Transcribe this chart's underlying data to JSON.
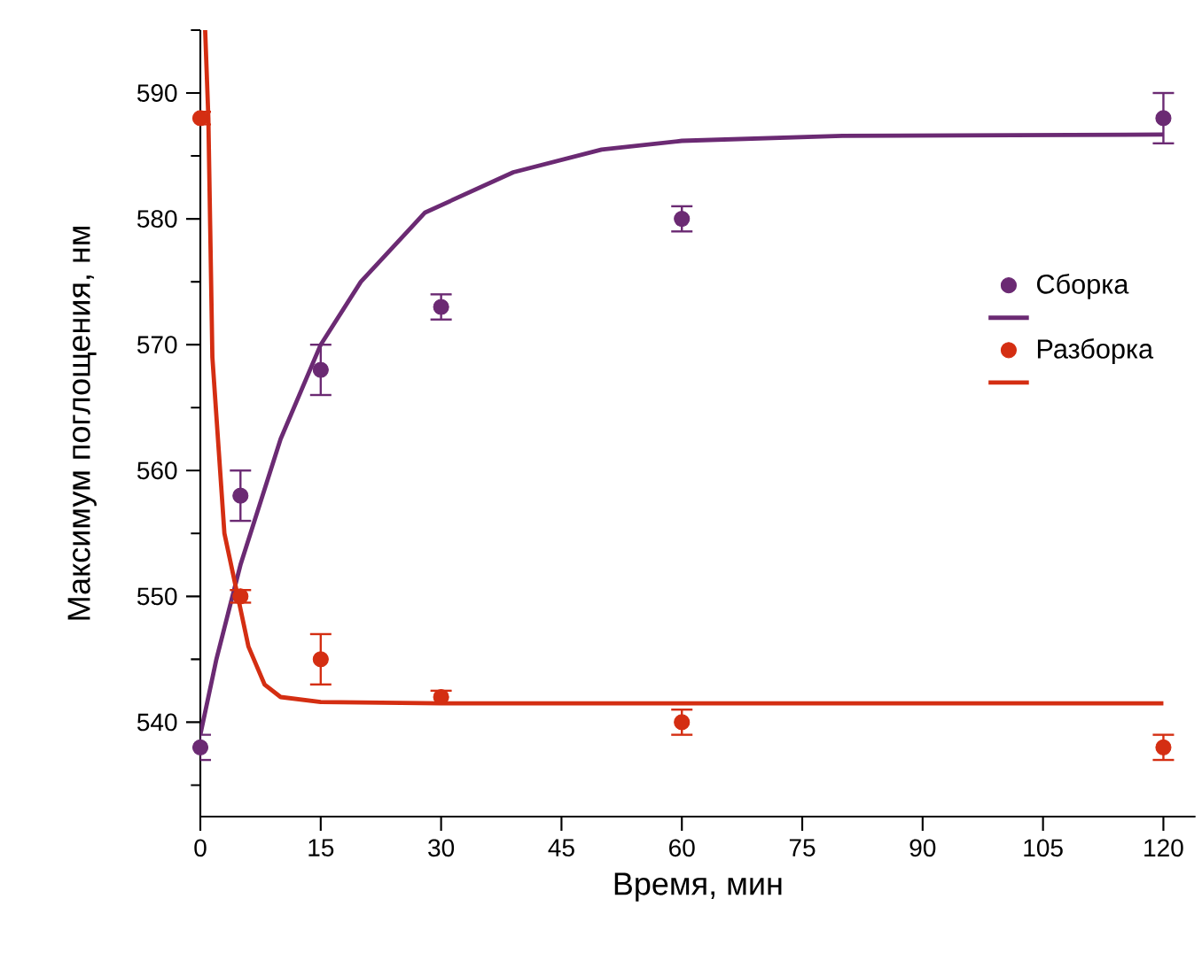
{
  "chart_data": {
    "type": "scatter",
    "xlabel": "Время, мин",
    "ylabel": "Максимум поглощения, нм",
    "xlim": [
      0,
      124
    ],
    "ylim": [
      532.5,
      595
    ],
    "xticks": [
      0,
      15,
      30,
      45,
      60,
      75,
      90,
      105,
      120
    ],
    "yticks": [
      {
        "value": 535,
        "label": null
      },
      540,
      {
        "value": 545,
        "label": null
      },
      550,
      {
        "value": 555,
        "label": null
      },
      560,
      {
        "value": 565,
        "label": null
      },
      570,
      {
        "value": 575,
        "label": null
      },
      580,
      {
        "value": 585,
        "label": null
      },
      590,
      {
        "value": 595,
        "label": null
      }
    ],
    "grid": false,
    "legend": "right",
    "series": [
      {
        "name": "Сборка",
        "marker": "circle",
        "color": "#6b2a73",
        "x": [
          0,
          5,
          15,
          30,
          60,
          120
        ],
        "values": [
          538,
          558,
          568,
          573,
          580,
          588
        ],
        "errors": [
          1,
          2,
          2,
          1,
          1,
          2
        ]
      },
      {
        "type": "line",
        "marker": "none",
        "line_style": "solid",
        "color": "#6b2a73",
        "x": [
          0,
          2,
          5,
          10,
          15,
          20,
          28,
          39,
          50,
          60,
          80,
          120
        ],
        "values": [
          539,
          545,
          552.5,
          562.5,
          570,
          575,
          580.5,
          583.7,
          585.5,
          586.2,
          586.6,
          586.7
        ]
      },
      {
        "name": "Разборка",
        "marker": "circle",
        "color": "#d42e12",
        "x": [
          0,
          5,
          15,
          30,
          60,
          120
        ],
        "values": [
          588,
          550,
          545,
          542,
          540,
          538
        ],
        "errors": [
          0.5,
          0.5,
          2,
          0.5,
          1,
          1
        ]
      },
      {
        "type": "line",
        "marker": "none",
        "line_style": "solid",
        "color": "#d42e12",
        "x": [
          0.6,
          1,
          1.5,
          3,
          4.5,
          6,
          8,
          10,
          15,
          30,
          120
        ],
        "values": [
          595,
          588,
          569,
          555,
          550.5,
          546,
          543,
          542,
          541.6,
          541.5,
          541.5
        ]
      }
    ]
  }
}
